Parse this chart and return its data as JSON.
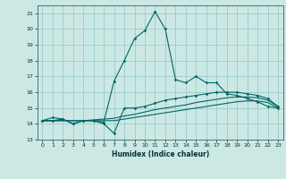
{
  "title": "",
  "xlabel": "Humidex (Indice chaleur)",
  "bg_color": "#cce8e4",
  "grid_color": "#99cccc",
  "line_color": "#006666",
  "xlim": [
    -0.5,
    23.5
  ],
  "ylim": [
    13,
    21.5
  ],
  "yticks": [
    13,
    14,
    15,
    16,
    17,
    18,
    19,
    20,
    21
  ],
  "xticks": [
    0,
    1,
    2,
    3,
    4,
    5,
    6,
    7,
    8,
    9,
    10,
    11,
    12,
    13,
    14,
    15,
    16,
    17,
    18,
    19,
    20,
    21,
    22,
    23
  ],
  "series1_x": [
    0,
    1,
    2,
    3,
    4,
    5,
    6,
    7,
    8,
    9,
    10,
    11,
    12,
    13,
    14,
    15,
    16,
    17,
    18,
    19,
    20,
    21,
    22,
    23
  ],
  "series1_y": [
    14.2,
    14.4,
    14.3,
    14.0,
    14.2,
    14.2,
    14.0,
    13.4,
    15.0,
    15.0,
    15.1,
    15.3,
    15.5,
    15.6,
    15.7,
    15.8,
    15.9,
    16.0,
    16.0,
    16.0,
    15.9,
    15.8,
    15.6,
    15.1
  ],
  "series2_x": [
    0,
    1,
    2,
    3,
    4,
    5,
    6,
    7,
    8,
    9,
    10,
    11,
    12,
    13,
    14,
    15,
    16,
    17,
    18,
    19,
    20,
    21,
    22,
    23
  ],
  "series2_y": [
    14.2,
    14.2,
    14.2,
    14.2,
    14.2,
    14.25,
    14.3,
    14.35,
    14.5,
    14.6,
    14.75,
    14.9,
    15.0,
    15.1,
    15.2,
    15.35,
    15.45,
    15.55,
    15.65,
    15.7,
    15.7,
    15.65,
    15.5,
    15.1
  ],
  "series3_x": [
    0,
    1,
    2,
    3,
    4,
    5,
    6,
    7,
    8,
    9,
    10,
    11,
    12,
    13,
    14,
    15,
    16,
    17,
    18,
    19,
    20,
    21,
    22,
    23
  ],
  "series3_y": [
    14.2,
    14.2,
    14.3,
    14.0,
    14.2,
    14.2,
    14.1,
    16.7,
    18.0,
    19.4,
    19.9,
    21.1,
    20.0,
    16.8,
    16.6,
    17.0,
    16.6,
    16.6,
    15.9,
    15.8,
    15.6,
    15.4,
    15.1,
    15.0
  ],
  "series4_x": [
    0,
    1,
    2,
    3,
    4,
    5,
    6,
    7,
    8,
    9,
    10,
    11,
    12,
    13,
    14,
    15,
    16,
    17,
    18,
    19,
    20,
    21,
    22,
    23
  ],
  "series4_y": [
    14.2,
    14.2,
    14.2,
    14.2,
    14.2,
    14.2,
    14.2,
    14.2,
    14.3,
    14.4,
    14.5,
    14.6,
    14.7,
    14.8,
    14.9,
    15.0,
    15.1,
    15.2,
    15.3,
    15.4,
    15.45,
    15.45,
    15.35,
    15.0
  ]
}
